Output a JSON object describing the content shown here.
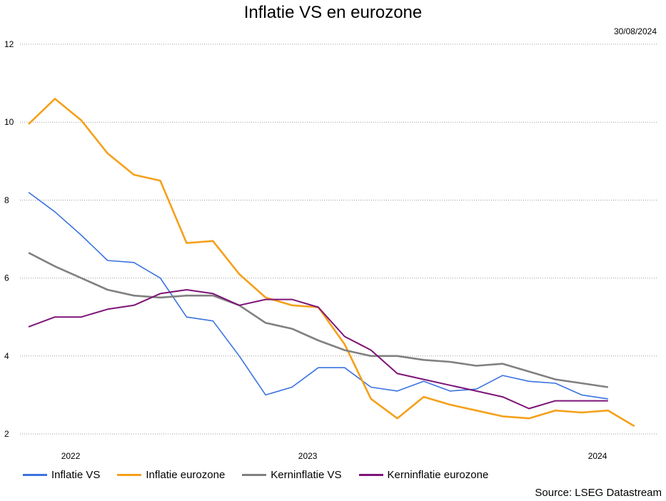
{
  "title": "Inflatie VS en eurozone",
  "date": "30/08/2024",
  "source": "Source: LSEG Datastream",
  "chart_data": {
    "type": "line",
    "title": "Inflatie VS en eurozone",
    "ylim": [
      2,
      12
    ],
    "yticks": [
      2,
      4,
      6,
      8,
      10,
      12
    ],
    "xlabels": [
      {
        "label": "2022",
        "index": 1.6
      },
      {
        "label": "2023",
        "index": 10.6
      },
      {
        "label": "2024",
        "index": 21.6
      }
    ],
    "x_count": 26,
    "grid": true,
    "legend_position": "bottom",
    "series": [
      {
        "name": "Inflatie VS",
        "color": "#3a73e0",
        "width": 1.6,
        "values": [
          8.2,
          7.7,
          7.1,
          6.45,
          6.4,
          6.0,
          5.0,
          4.9,
          4.0,
          3.0,
          3.2,
          3.7,
          3.7,
          3.2,
          3.1,
          3.35,
          3.1,
          3.15,
          3.5,
          3.35,
          3.3,
          3.0,
          2.9
        ]
      },
      {
        "name": "Inflatie eurozone",
        "color": "#f5a01a",
        "width": 2.6,
        "values": [
          9.95,
          10.6,
          10.05,
          9.2,
          8.65,
          8.5,
          6.9,
          6.95,
          6.1,
          5.5,
          5.3,
          5.25,
          4.3,
          2.9,
          2.4,
          2.95,
          2.75,
          2.6,
          2.45,
          2.4,
          2.6,
          2.55,
          2.6,
          2.2
        ]
      },
      {
        "name": "Kerninflatie VS",
        "color": "#808080",
        "width": 2.6,
        "values": [
          6.65,
          6.3,
          6.0,
          5.7,
          5.55,
          5.5,
          5.55,
          5.55,
          5.3,
          4.85,
          4.7,
          4.4,
          4.15,
          4.0,
          4.0,
          3.9,
          3.85,
          3.75,
          3.8,
          3.6,
          3.4,
          3.3,
          3.2
        ]
      },
      {
        "name": "Kerninflatie eurozone",
        "color": "#7d1478",
        "width": 2.0,
        "values": [
          4.75,
          5.0,
          5.0,
          5.2,
          5.3,
          5.6,
          5.7,
          5.6,
          5.3,
          5.45,
          5.45,
          5.25,
          4.5,
          4.15,
          3.55,
          3.4,
          3.25,
          3.1,
          2.95,
          2.65,
          2.85,
          2.85,
          2.85
        ]
      }
    ]
  }
}
